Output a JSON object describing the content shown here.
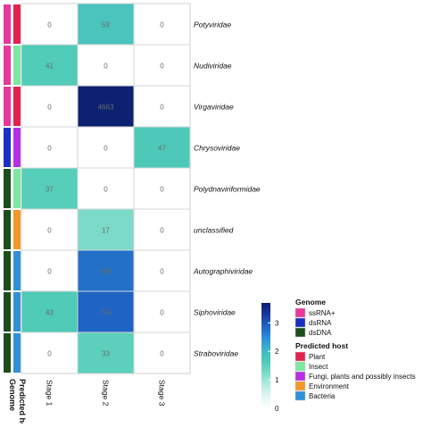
{
  "chart_data": {
    "type": "heatmap",
    "title": "",
    "xlabel": "",
    "ylabel": "",
    "x_categories": [
      "Stage 1",
      "Stage 2",
      "Stage 3"
    ],
    "y_categories": [
      "Potyviridae",
      "Nudiviridae",
      "Virgaviridae",
      "Chrysoviridae",
      "Polydnaviriformidae",
      "unclassified",
      "Autographiviridae",
      "Siphoviridae",
      "Straboviridae"
    ],
    "values": [
      [
        0,
        59,
        0
      ],
      [
        41,
        0,
        0
      ],
      [
        0,
        4663,
        0
      ],
      [
        0,
        0,
        47
      ],
      [
        37,
        0,
        0
      ],
      [
        0,
        17,
        0
      ],
      [
        0,
        569,
        0
      ],
      [
        43,
        755,
        0
      ],
      [
        0,
        33,
        0
      ]
    ],
    "color_scale": {
      "type": "log10(count+1)",
      "range": [
        0,
        3.7
      ],
      "ticks": [
        0,
        1,
        2,
        3
      ],
      "colors": [
        "#ffffff",
        "#e3f6f2",
        "#b4ebe0",
        "#7ddcc9",
        "#4fcbb7",
        "#3fb5c8",
        "#2c8fd6",
        "#1f63c4",
        "#183a9c",
        "#0c1f6e"
      ]
    },
    "annotation_tracks": [
      {
        "name": "Genome",
        "values": [
          "ssRNA+",
          "ssRNA+",
          "ssRNA+",
          "dsRNA",
          "dsDNA",
          "dsDNA",
          "dsDNA",
          "dsDNA",
          "dsDNA"
        ]
      },
      {
        "name": "Predicted host",
        "values": [
          "Plant",
          "Insect",
          "Plant",
          "Fungi, plants and possibly insects",
          "Insect",
          "Environment",
          "Bacteria",
          "Bacteria",
          "Bacteria"
        ]
      }
    ],
    "legends": [
      {
        "title": "Genome",
        "items": [
          {
            "label": "ssRNA+",
            "color": "#e8389a"
          },
          {
            "label": "dsRNA",
            "color": "#1b2fc4"
          },
          {
            "label": "dsDNA",
            "color": "#1c4d1c"
          }
        ]
      },
      {
        "title": "Predicted host",
        "items": [
          {
            "label": "Plant",
            "color": "#e0244e"
          },
          {
            "label": "Insect",
            "color": "#7ce8a2"
          },
          {
            "label": "Fungi, plants and possibly insects",
            "color": "#b82ee0"
          },
          {
            "label": "Environment",
            "color": "#f2982a"
          },
          {
            "label": "Bacteria",
            "color": "#3090d8"
          }
        ]
      }
    ],
    "grid": true,
    "legend_position": "right"
  }
}
